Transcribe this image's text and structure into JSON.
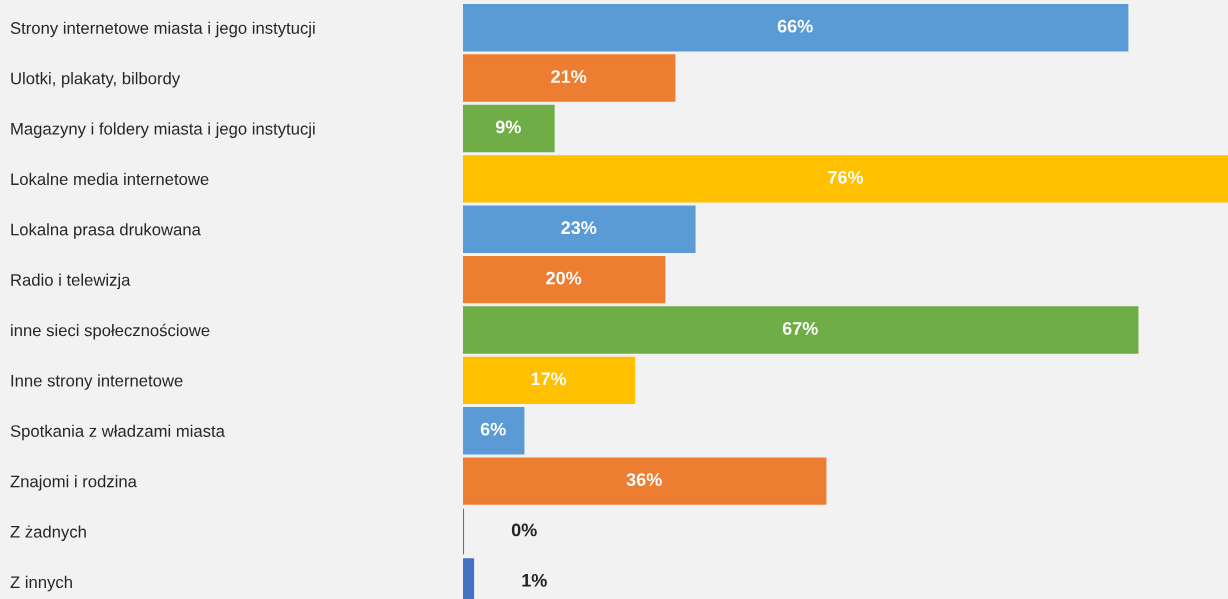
{
  "chart_data": {
    "type": "bar",
    "orientation": "horizontal",
    "data_labels": true,
    "categories": [
      "Strony internetowe miasta i jego instytucji",
      "Ulotki, plakaty, bilbordy",
      "Magazyny i foldery miasta i jego instytucji",
      "Lokalne media internetowe",
      "Lokalna prasa drukowana",
      "Radio i telewizja",
      "inne sieci społecznościowe",
      "Inne strony internetowe",
      "Spotkania z władzami miasta",
      "Znajomi i rodzina",
      "Z żadnych",
      "Z innych"
    ],
    "values": [
      66,
      21,
      9,
      76,
      23,
      20,
      67,
      17,
      6,
      36,
      0,
      1
    ],
    "value_labels": [
      "66%",
      "21%",
      "9%",
      "76%",
      "23%",
      "20%",
      "67%",
      "17%",
      "6%",
      "36%",
      "0%",
      "1%"
    ],
    "colors": [
      "#5b9bd5",
      "#ed7d31",
      "#70ad47",
      "#ffc000",
      "#5b9bd5",
      "#ed7d31",
      "#70ad47",
      "#ffc000",
      "#5b9bd5",
      "#ed7d31",
      "#4472c4",
      "#4472c4"
    ]
  }
}
